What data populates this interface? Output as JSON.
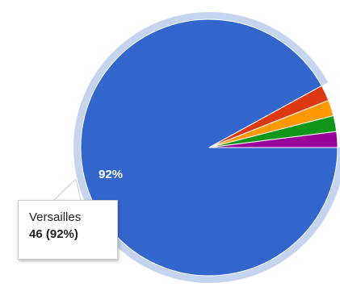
{
  "chart_data": {
    "type": "pie",
    "slices": [
      {
        "label": "Versailles",
        "value": 46,
        "percent": 92,
        "color": "#3366cc",
        "highlighted": true
      },
      {
        "label": "",
        "value": 1,
        "percent": 2,
        "color": "#dc3912"
      },
      {
        "label": "",
        "value": 1,
        "percent": 2,
        "color": "#ff9900"
      },
      {
        "label": "",
        "value": 1,
        "percent": 2,
        "color": "#109618"
      },
      {
        "label": "",
        "value": 1,
        "percent": 2,
        "color": "#990099"
      }
    ],
    "slice_labels": [
      {
        "text": "92%"
      }
    ],
    "highlight_ring_color": "#c5d4ef",
    "tooltip": {
      "name": "Versailles",
      "value_text": "46 (92%)"
    }
  }
}
